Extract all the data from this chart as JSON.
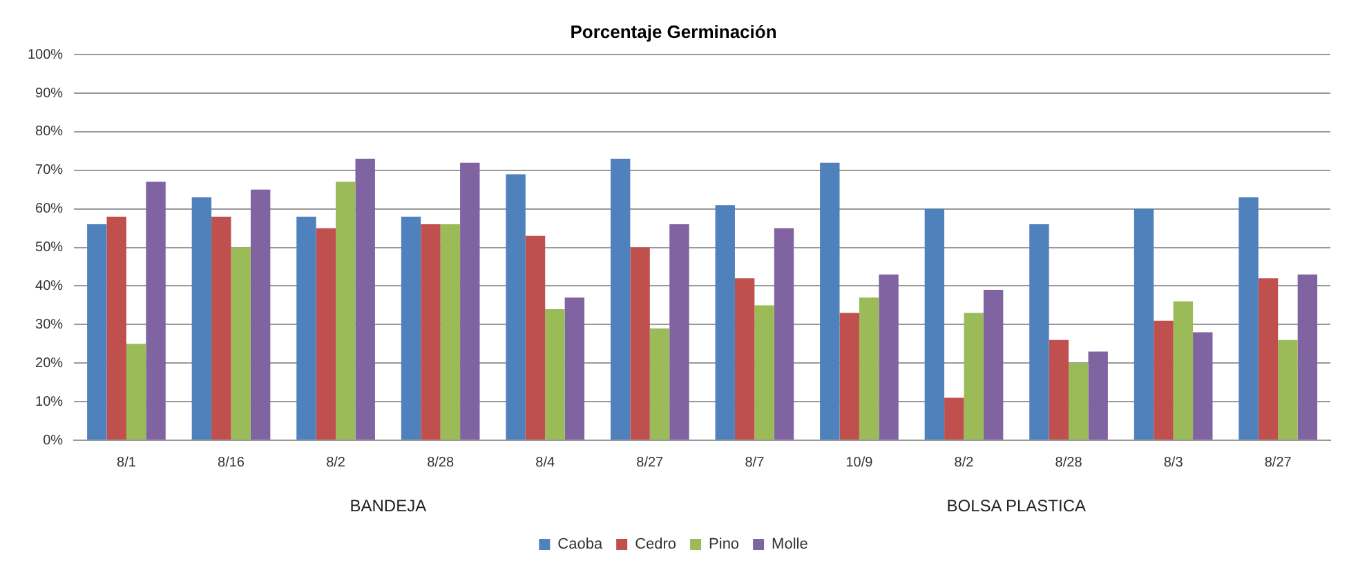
{
  "chart_data": {
    "type": "bar",
    "title": "Porcentaje Germinación",
    "categories": [
      "8/1",
      "8/16",
      "8/2",
      "8/28",
      "8/4",
      "8/27",
      "8/7",
      "10/9",
      "8/2",
      "8/28",
      "8/3",
      "8/27"
    ],
    "series": [
      {
        "name": "Caoba",
        "color": "#4f81bd",
        "values": [
          56,
          63,
          58,
          58,
          69,
          73,
          61,
          72,
          60,
          56,
          60,
          63
        ]
      },
      {
        "name": "Cedro",
        "color": "#c0504d",
        "values": [
          58,
          58,
          55,
          56,
          53,
          50,
          42,
          33,
          11,
          26,
          31,
          42
        ]
      },
      {
        "name": "Pino",
        "color": "#9bbb59",
        "values": [
          25,
          50,
          67,
          56,
          34,
          29,
          35,
          37,
          33,
          20,
          36,
          26
        ]
      },
      {
        "name": "Molle",
        "color": "#8064a2",
        "values": [
          67,
          65,
          73,
          72,
          37,
          56,
          55,
          43,
          39,
          23,
          28,
          43
        ]
      }
    ],
    "annotations": [
      "BANDEJA",
      "BOLSA PLASTICA"
    ],
    "ylim": [
      0,
      100
    ],
    "yticks": [
      {
        "value": 0,
        "label": "0%"
      },
      {
        "value": 10,
        "label": "10%"
      },
      {
        "value": 20,
        "label": "20%"
      },
      {
        "value": 30,
        "label": "30%"
      },
      {
        "value": 40,
        "label": "40%"
      },
      {
        "value": 50,
        "label": "50%"
      },
      {
        "value": 60,
        "label": "60%"
      },
      {
        "value": 70,
        "label": "70%"
      },
      {
        "value": 80,
        "label": "80%"
      },
      {
        "value": 90,
        "label": "90%"
      },
      {
        "value": 100,
        "label": "100%"
      }
    ],
    "grid": "y",
    "legend": "bottom"
  }
}
